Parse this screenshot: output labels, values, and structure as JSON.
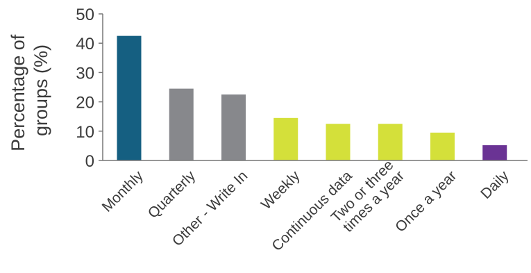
{
  "chart_data": {
    "type": "bar",
    "title": "",
    "xlabel": "",
    "ylabel_lines": [
      "Percentage of",
      "groups (%)"
    ],
    "ylim": [
      0,
      50
    ],
    "yticks": [
      0,
      10,
      20,
      30,
      40,
      50
    ],
    "categories": [
      [
        "Monthly"
      ],
      [
        "Quarterly"
      ],
      [
        "Other - Write In"
      ],
      [
        "Weekly"
      ],
      [
        "Continuous data"
      ],
      [
        "Two or three",
        "times a year"
      ],
      [
        "Once a year"
      ],
      [
        "Daily"
      ]
    ],
    "values": [
      42.5,
      24.5,
      22.5,
      14.5,
      12.5,
      12.5,
      9.5,
      5.2
    ],
    "colors": [
      "#155f81",
      "#87888c",
      "#87888c",
      "#d4e03a",
      "#d4e03a",
      "#d4e03a",
      "#d4e03a",
      "#6a3394"
    ],
    "grid": false,
    "legend": "none"
  }
}
